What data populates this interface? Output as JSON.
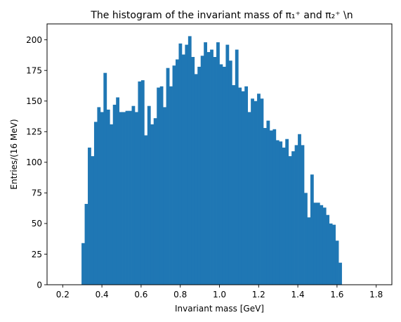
{
  "chart_data": {
    "type": "bar",
    "title": "The histogram of the invariant mass of π₁⁺ and π₂⁺ \\n",
    "xlabel": "Invariant mass [GeV]",
    "ylabel": "Entries/(16 MeV)",
    "xlim": [
      0.12,
      1.88
    ],
    "ylim": [
      0,
      213
    ],
    "x_ticks": [
      0.2,
      0.4,
      0.6,
      0.8,
      1.0,
      1.2,
      1.4,
      1.6,
      1.8
    ],
    "x_tick_labels": [
      "0.2",
      "0.4",
      "0.6",
      "0.8",
      "1.0",
      "1.2",
      "1.4",
      "1.6",
      "1.8"
    ],
    "y_ticks": [
      0,
      25,
      50,
      75,
      100,
      125,
      150,
      175,
      200
    ],
    "y_tick_labels": [
      "0",
      "25",
      "50",
      "75",
      "100",
      "125",
      "150",
      "175",
      "200"
    ],
    "bin_start": 0.2,
    "bin_width": 0.016,
    "bar_color": "#1f77b4",
    "grid": false,
    "values": [
      0,
      0,
      0,
      0,
      0,
      0,
      34,
      66,
      112,
      105,
      133,
      145,
      141,
      173,
      143,
      131,
      147,
      153,
      141,
      141,
      142,
      142,
      146,
      141,
      166,
      167,
      122,
      146,
      131,
      136,
      161,
      162,
      145,
      177,
      162,
      179,
      184,
      197,
      188,
      196,
      203,
      186,
      172,
      178,
      187,
      198,
      190,
      192,
      186,
      198,
      180,
      178,
      196,
      183,
      163,
      192,
      161,
      158,
      162,
      141,
      152,
      150,
      156,
      152,
      128,
      134,
      126,
      127,
      118,
      117,
      112,
      119,
      105,
      109,
      114,
      123,
      114,
      75,
      55,
      90,
      67,
      67,
      65,
      63,
      57,
      50,
      49,
      36,
      18,
      0
    ]
  }
}
